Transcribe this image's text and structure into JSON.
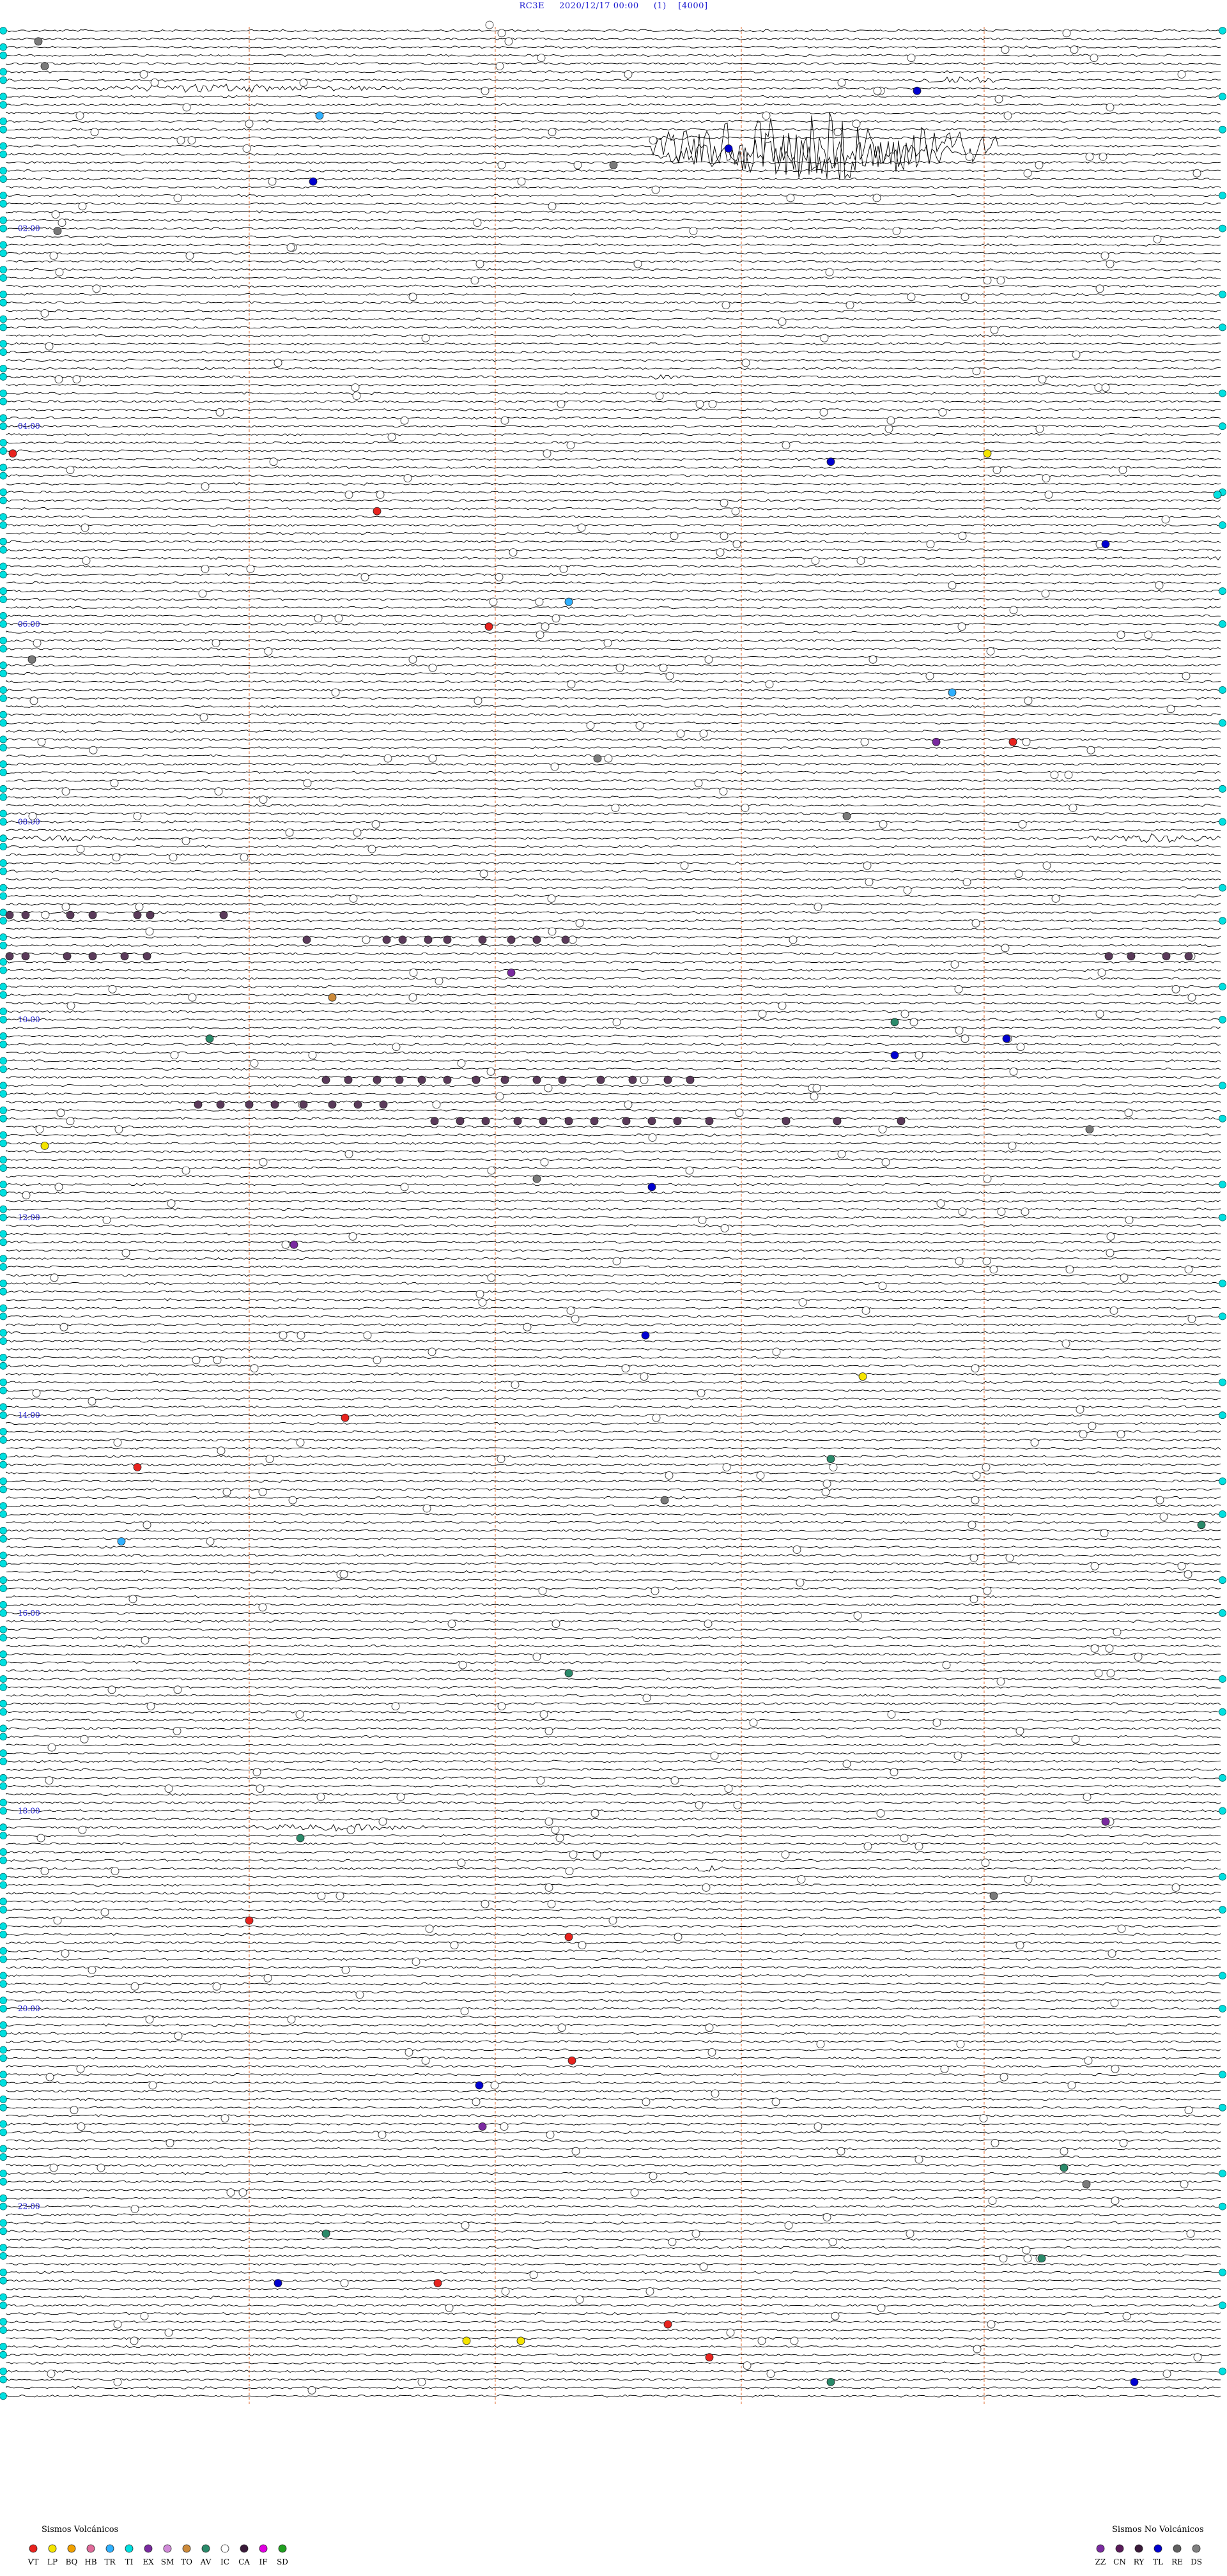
{
  "header": {
    "station": "RC3E",
    "datetime": "2020/12/17 00:00",
    "channel": "(1)",
    "scale": "[4000]"
  },
  "time_labels": [
    "02:00",
    "04:00",
    "06:00",
    "08:00",
    "10:00",
    "12:00",
    "14:00",
    "16:00",
    "18:00",
    "20:00",
    "22:00"
  ],
  "legend_volcanic": {
    "title": "Sismos Volcánicos",
    "codes": [
      "VT",
      "LP",
      "BQ",
      "HB",
      "TR",
      "TI",
      "EX",
      "SM",
      "TO",
      "AV",
      "IC",
      "CA",
      "IF",
      "SD"
    ],
    "colors": [
      "#e8231e",
      "#f4e400",
      "#f0a000",
      "#e06a9a",
      "#2fb0ff",
      "#00e0e0",
      "#7a2aa0",
      "#d08ad8",
      "#cc8a3a",
      "#2a8a6a",
      "#ffffff",
      "#3a1a3a",
      "#e000e0",
      "#20a020"
    ]
  },
  "legend_nonvolcanic": {
    "title": "Sismos No Volcánicos",
    "codes": [
      "ZZ",
      "CN",
      "RY",
      "TL",
      "RE",
      "DS"
    ],
    "colors": [
      "#7a2aa0",
      "#5a1a5a",
      "#3a1a3a",
      "#0000d0",
      "#606060",
      "#808080"
    ]
  },
  "colors": {
    "trace": "#000000",
    "hour_label": "#1a1ad0",
    "grid_line": "#e88a5a",
    "start_marker": "#00e0e0",
    "white_marker": "#ffffff",
    "grey_marker": "#7a7a7a",
    "purple_marker": "#5a3a5a"
  }
}
